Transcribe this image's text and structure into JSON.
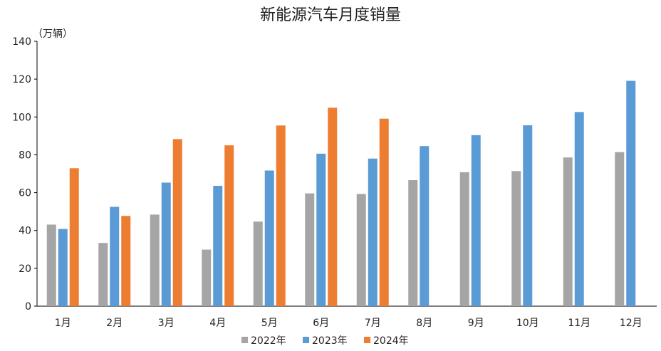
{
  "chart_data": {
    "type": "bar",
    "title": "新能源汽车月度销量",
    "unit_label": "（万辆）",
    "categories": [
      "1月",
      "2月",
      "3月",
      "4月",
      "5月",
      "6月",
      "7月",
      "8月",
      "9月",
      "10月",
      "11月",
      "12月"
    ],
    "series": [
      {
        "name": "2022年",
        "color": "#a5a5a5",
        "values": [
          43.1,
          33.4,
          48.4,
          29.9,
          44.7,
          59.6,
          59.3,
          66.6,
          70.8,
          71.4,
          78.6,
          81.4
        ]
      },
      {
        "name": "2023年",
        "color": "#5b9bd5",
        "values": [
          40.8,
          52.5,
          65.3,
          63.6,
          71.7,
          80.6,
          78.0,
          84.6,
          90.4,
          95.6,
          102.6,
          119.1
        ]
      },
      {
        "name": "2024年",
        "color": "#ed7d31",
        "values": [
          72.9,
          47.7,
          88.3,
          85.0,
          95.5,
          104.9,
          99.1,
          null,
          null,
          null,
          null,
          null
        ]
      }
    ],
    "ylim": [
      0,
      140
    ],
    "yticks": [
      "0",
      "20",
      "40",
      "60",
      "80",
      "100",
      "120",
      "140"
    ],
    "grid": false,
    "legend_position": "bottom"
  }
}
